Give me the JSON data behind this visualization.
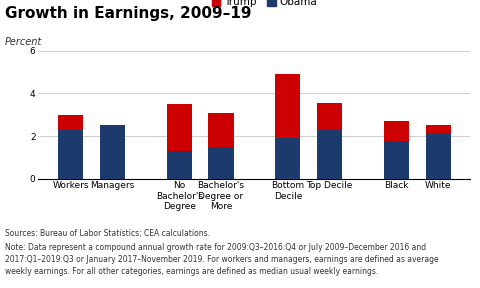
{
  "title": "Growth in Earnings, 2009–19",
  "ylabel": "Percent",
  "ylim": [
    0,
    6.5
  ],
  "yticks": [
    0,
    2,
    4,
    6
  ],
  "ytick_labels": [
    "0",
    "2",
    "4",
    "6"
  ],
  "legend_labels": [
    "Trump",
    "Obama"
  ],
  "trump_color": "#CC0000",
  "obama_color": "#1C3A6B",
  "background_color": "#FFFFFF",
  "categories": [
    "Workers",
    "Managers",
    "No\nBachelor's\nDegree",
    "Bachelor's\nDegree or\nMore",
    "Bottom\nDecile",
    "Top Decile",
    "Black",
    "White"
  ],
  "trump_values": [
    3.0,
    2.5,
    3.5,
    3.1,
    4.9,
    3.55,
    2.7,
    2.5
  ],
  "obama_values": [
    2.3,
    2.5,
    1.3,
    1.5,
    1.9,
    2.3,
    1.75,
    2.1
  ],
  "group_gaps": [
    0,
    0,
    1,
    0,
    1,
    0,
    1,
    0
  ],
  "source_text": "Sources: Bureau of Labor Statistics; CEA calculations.",
  "note_text": "Note: Data represent a compound annual growth rate for 2009:Q3–2016:Q4 or July 2009–December 2016 and\n2017:Q1–2019:Q3 or January 2017–November 2019. For workers and managers, earnings are defined as average\nweekly earnings. For all other categories, earnings are defined as median usual weekly earnings.",
  "title_fontsize": 11,
  "label_fontsize": 7,
  "tick_fontsize": 6.5,
  "legend_fontsize": 7.5,
  "note_fontsize": 5.5,
  "bar_width": 0.6
}
